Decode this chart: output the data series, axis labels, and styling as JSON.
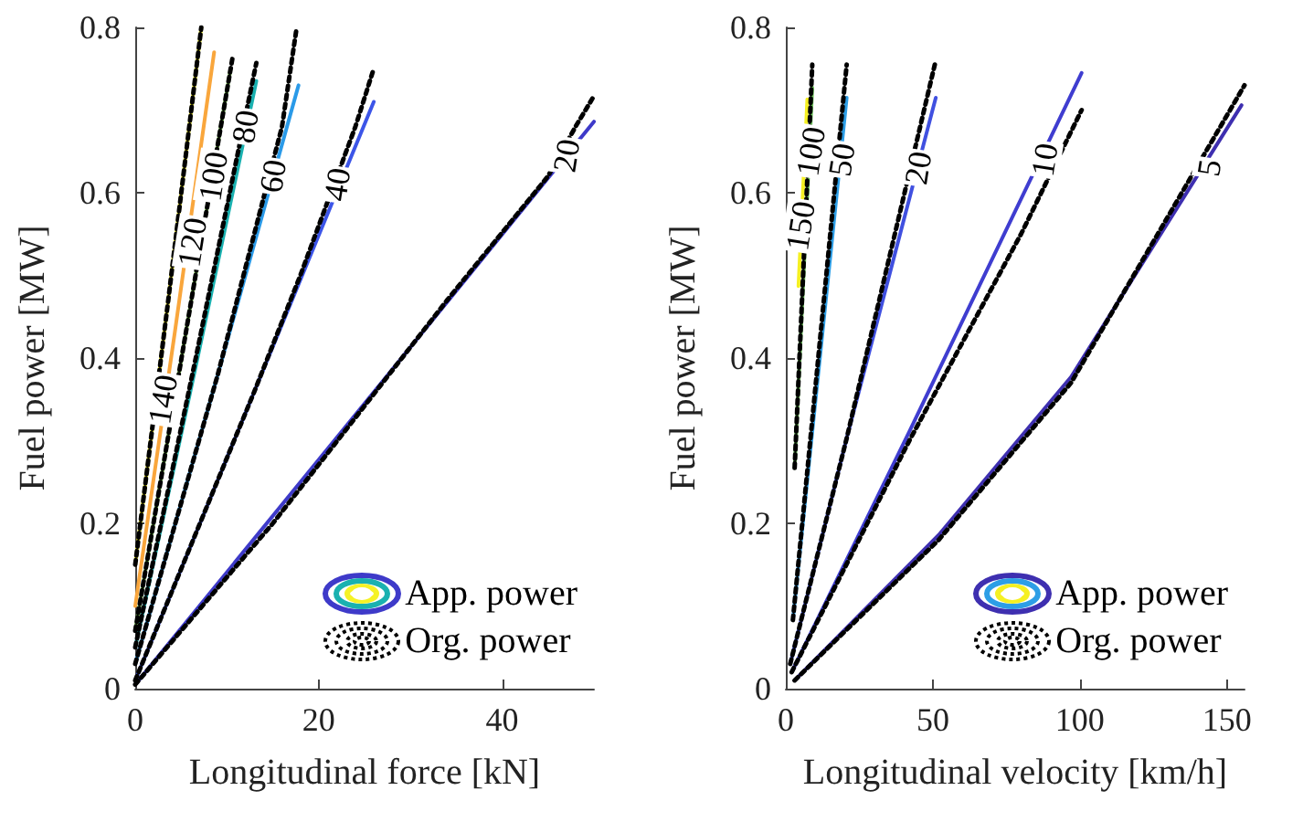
{
  "chart_data": [
    {
      "type": "line",
      "xlabel": "Longitudinal force [kN]",
      "ylabel": "Fuel power [MW]",
      "xlim": [
        0,
        50
      ],
      "xticks": [
        0,
        20,
        40
      ],
      "ylim": [
        0,
        0.8
      ],
      "yticks": [
        0,
        0.2,
        0.4,
        0.6,
        0.8
      ],
      "grid": false,
      "marker": "none",
      "annotations": [
        "App. power",
        "Org. power",
        {
          "text": "140",
          "x": 3,
          "y": 0.35
        },
        {
          "text": "120",
          "x": 6.2,
          "y": 0.54
        },
        {
          "text": "100",
          "x": 8.5,
          "y": 0.62
        },
        {
          "text": "80",
          "x": 12,
          "y": 0.68
        },
        {
          "text": "60",
          "x": 15,
          "y": 0.62
        },
        {
          "text": "40",
          "x": 22,
          "y": 0.61
        },
        {
          "text": "20",
          "x": 47,
          "y": 0.645
        }
      ],
      "series": [
        {
          "color": "#3e3ac9",
          "line_style": "solid",
          "x": [
            0,
            25,
            50
          ],
          "values": [
            0.005,
            0.345,
            0.686
          ]
        },
        {
          "color": "#3c55e8",
          "line_style": "solid",
          "x": [
            0,
            13,
            26
          ],
          "values": [
            0.01,
            0.36,
            0.71
          ]
        },
        {
          "color": "#2a9ae8",
          "line_style": "solid",
          "x": [
            0,
            9,
            17.8
          ],
          "values": [
            0.03,
            0.38,
            0.73
          ]
        },
        {
          "color": "#1ab1b0",
          "line_style": "solid",
          "x": [
            0,
            6.6,
            13.2
          ],
          "values": [
            0.05,
            0.39,
            0.735
          ]
        },
        {
          "color": "#7cc552",
          "line_style": "solid",
          "x": [
            0,
            5.2,
            10.4
          ],
          "values": [
            0.07,
            0.41,
            0.75
          ]
        },
        {
          "color": "#f9a63c",
          "line_style": "solid",
          "x": [
            0,
            4.3,
            8.6
          ],
          "values": [
            0.1,
            0.43,
            0.77
          ]
        },
        {
          "color": "#f5f226",
          "line_style": "solid",
          "x": [
            0,
            3.6,
            7.2
          ],
          "values": [
            0.15,
            0.47,
            0.8
          ]
        },
        {
          "color": "#000000",
          "line_style": "dotted",
          "x": [
            0,
            15,
            34,
            45,
            48,
            50
          ],
          "values": [
            0.005,
            0.2,
            0.47,
            0.62,
            0.68,
            0.717
          ]
        },
        {
          "color": "#000000",
          "line_style": "dotted",
          "x": [
            0,
            13,
            18,
            24,
            26
          ],
          "values": [
            0.01,
            0.36,
            0.5,
            0.68,
            0.75
          ]
        },
        {
          "color": "#000000",
          "line_style": "dotted",
          "x": [
            0,
            9,
            16,
            17.6
          ],
          "values": [
            0.03,
            0.38,
            0.68,
            0.8
          ]
        },
        {
          "color": "#000000",
          "line_style": "dotted",
          "x": [
            0,
            6.6,
            13.2
          ],
          "values": [
            0.05,
            0.4,
            0.757
          ]
        },
        {
          "color": "#000000",
          "line_style": "dotted",
          "x": [
            0,
            5.2,
            10.6
          ],
          "values": [
            0.07,
            0.41,
            0.763
          ]
        },
        {
          "color": "#000000",
          "line_style": "dotted",
          "x": [
            0,
            3.6,
            7.2
          ],
          "values": [
            0.15,
            0.47,
            0.8
          ]
        }
      ]
    },
    {
      "type": "line",
      "xlabel": "Longitudinal velocity [km/h]",
      "ylabel": "Fuel power [MW]",
      "xlim": [
        0,
        156
      ],
      "xticks": [
        0,
        50,
        100,
        150
      ],
      "ylim": [
        0,
        0.8
      ],
      "yticks": [
        0,
        0.2,
        0.4,
        0.6,
        0.8
      ],
      "grid": false,
      "marker": "none",
      "annotations": [
        "App. power",
        "Org. power",
        {
          "text": "150",
          "x": 5,
          "y": 0.56
        },
        {
          "text": "100",
          "x": 8.5,
          "y": 0.65
        },
        {
          "text": "50",
          "x": 19,
          "y": 0.64
        },
        {
          "text": "20",
          "x": 45,
          "y": 0.63
        },
        {
          "text": "10",
          "x": 88,
          "y": 0.64
        },
        {
          "text": "5",
          "x": 144,
          "y": 0.63
        }
      ],
      "series": [
        {
          "color": "#3e2fb0",
          "line_style": "solid",
          "x": [
            3,
            52,
            97,
            155
          ],
          "values": [
            0.01,
            0.186,
            0.377,
            0.706
          ]
        },
        {
          "color": "#3f3dd0",
          "line_style": "solid",
          "x": [
            2,
            42,
            100.6
          ],
          "values": [
            0.02,
            0.311,
            0.745
          ]
        },
        {
          "color": "#4050e0",
          "line_style": "solid",
          "x": [
            1.5,
            20.7,
            51
          ],
          "values": [
            0.03,
            0.303,
            0.715
          ]
        },
        {
          "color": "#2d9ee6",
          "line_style": "solid",
          "x": [
            2.4,
            20.7
          ],
          "values": [
            0.083,
            0.715
          ]
        },
        {
          "color": "#6dc55a",
          "line_style": "solid",
          "x": [
            3,
            9
          ],
          "values": [
            0.267,
            0.727
          ]
        },
        {
          "color": "#f5f022",
          "line_style": "solid",
          "x": [
            4.3,
            7.3
          ],
          "values": [
            0.487,
            0.713
          ]
        },
        {
          "color": "#000000",
          "line_style": "dotted",
          "x": [
            3,
            52,
            97,
            156
          ],
          "values": [
            0.01,
            0.18,
            0.37,
            0.73
          ]
        },
        {
          "color": "#000000",
          "line_style": "dotted",
          "x": [
            2,
            42,
            80,
            100.6
          ],
          "values": [
            0.02,
            0.3,
            0.55,
            0.7
          ]
        },
        {
          "color": "#000000",
          "line_style": "dotted",
          "x": [
            1.5,
            20.7,
            51
          ],
          "values": [
            0.03,
            0.303,
            0.76
          ]
        },
        {
          "color": "#000000",
          "line_style": "dotted",
          "x": [
            2.4,
            20.7
          ],
          "values": [
            0.083,
            0.755
          ]
        },
        {
          "color": "#000000",
          "line_style": "dotted",
          "x": [
            3,
            9
          ],
          "values": [
            0.267,
            0.755
          ]
        }
      ]
    }
  ]
}
